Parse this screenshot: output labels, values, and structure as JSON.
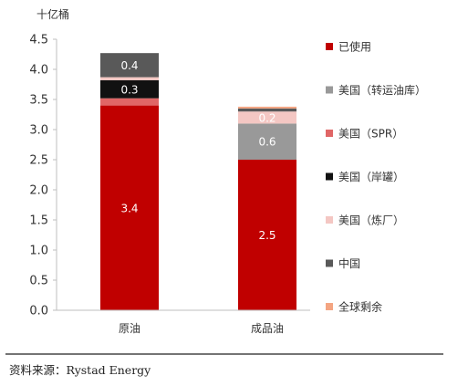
{
  "chart_data": {
    "type": "bar",
    "stacked": true,
    "unit_label": "十亿桶",
    "categories": [
      "原油",
      "成品油"
    ],
    "ylim": [
      0,
      4.5
    ],
    "yticks": [
      "0.0",
      "0.5",
      "1.0",
      "1.5",
      "2.0",
      "2.5",
      "3.0",
      "3.5",
      "4.0",
      "4.5"
    ],
    "grid": false,
    "legend_position": "right",
    "series": [
      {
        "name": "已使用",
        "color": "#c00000",
        "values": [
          3.4,
          2.5
        ],
        "labels": [
          "3.4",
          "2.5"
        ]
      },
      {
        "name": "美国（转运油库）",
        "color": "#999999",
        "values": [
          0.0,
          0.6
        ],
        "labels": [
          "",
          "0.6"
        ]
      },
      {
        "name": "美国（SPR）",
        "color": "#e06666",
        "values": [
          0.12,
          0.0
        ],
        "labels": [
          "",
          ""
        ]
      },
      {
        "name": "美国（岸罐）",
        "color": "#111111",
        "values": [
          0.3,
          0.0
        ],
        "labels": [
          "0.3",
          ""
        ]
      },
      {
        "name": "美国（炼厂）",
        "color": "#f4c7c3",
        "values": [
          0.05,
          0.2
        ],
        "labels": [
          "",
          "0.2"
        ]
      },
      {
        "name": "中国",
        "color": "#595959",
        "values": [
          0.4,
          0.05
        ],
        "labels": [
          "0.4",
          ""
        ]
      },
      {
        "name": "全球剩余",
        "color": "#f4a582",
        "values": [
          0.0,
          0.03
        ],
        "labels": [
          "",
          ""
        ]
      }
    ],
    "source": "资料来源：Rystad Energy"
  }
}
